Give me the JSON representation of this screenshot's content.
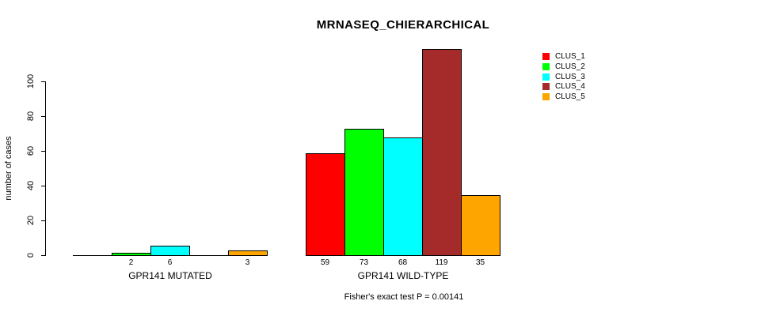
{
  "chart_data": {
    "type": "bar",
    "title": "MRNASEQ_CHIERARCHICAL",
    "ylabel": "number of cases",
    "xlabel": "",
    "ylim": [
      0,
      100
    ],
    "yticks": [
      0,
      20,
      40,
      60,
      80,
      100
    ],
    "grid": false,
    "legend_position": "top-right",
    "categories": [
      "GPR141 MUTATED",
      "GPR141 WILD-TYPE"
    ],
    "series": [
      {
        "name": "CLUS_1",
        "color": "#ff0000",
        "values": [
          0,
          59
        ]
      },
      {
        "name": "CLUS_2",
        "color": "#00ff00",
        "values": [
          2,
          73
        ]
      },
      {
        "name": "CLUS_3",
        "color": "#00ffff",
        "values": [
          6,
          68
        ]
      },
      {
        "name": "CLUS_4",
        "color": "#a52a2a",
        "values": [
          0,
          119
        ]
      },
      {
        "name": "CLUS_5",
        "color": "#ffa500",
        "values": [
          3,
          35
        ]
      }
    ],
    "bar_labels": [
      [
        "",
        "2",
        "6",
        "",
        "3"
      ],
      [
        "59",
        "73",
        "68",
        "119",
        "35"
      ]
    ],
    "annotation": "Fisher's exact test P = 0.00141"
  }
}
